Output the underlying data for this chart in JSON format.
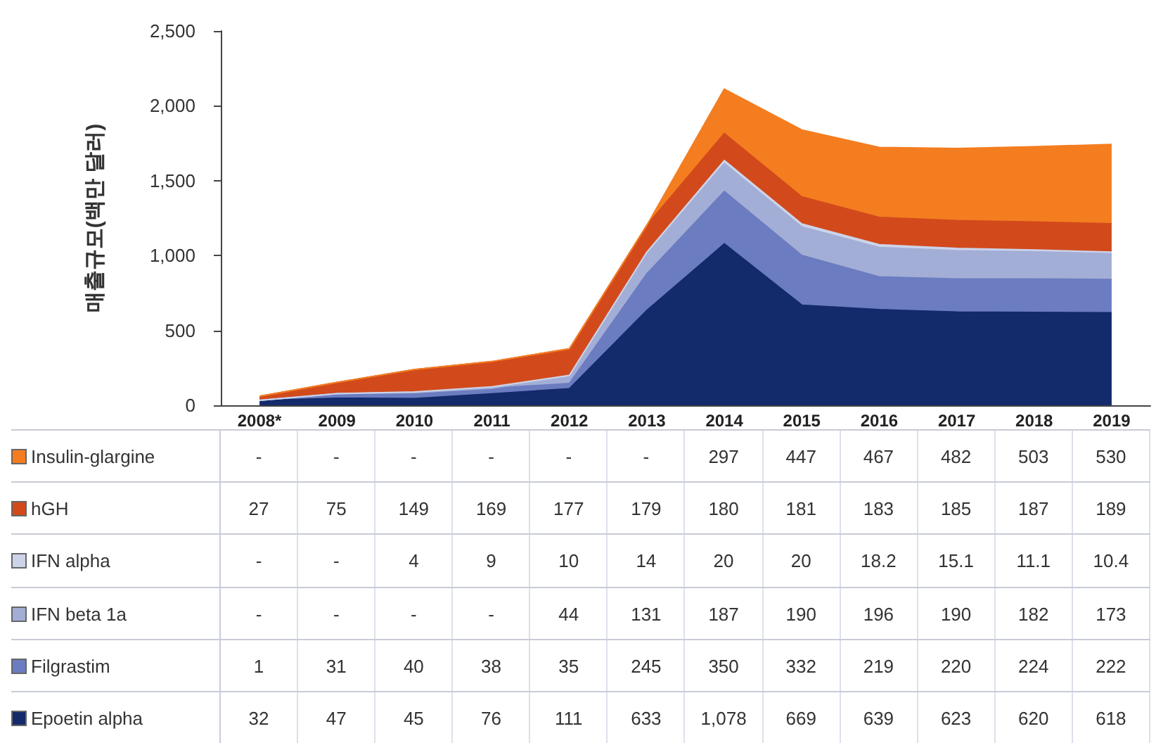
{
  "chart_data": {
    "type": "area",
    "stacked": true,
    "ylabel": "매출규모(백만 달러)",
    "categories": [
      "2008*",
      "2009",
      "2010",
      "2011",
      "2012",
      "2013",
      "2014",
      "2015",
      "2016",
      "2017",
      "2018",
      "2019"
    ],
    "ylim": [
      0,
      2500
    ],
    "yticks": [
      {
        "value": 0,
        "label": "0"
      },
      {
        "value": 500,
        "label": "500"
      },
      {
        "value": 1000,
        "label": "1,000"
      },
      {
        "value": 1500,
        "label": "1,500"
      },
      {
        "value": 2000,
        "label": "2,000"
      },
      {
        "value": 2500,
        "label": "2,500"
      }
    ],
    "grid": false,
    "legend": "bottom",
    "series": [
      {
        "name": "Epoetin alpha",
        "color": "#132a6b",
        "values": [
          32,
          47,
          45,
          76,
          111,
          633,
          1078,
          669,
          639,
          623,
          620,
          618
        ],
        "value_labels": [
          "32",
          "47",
          "45",
          "76",
          "111",
          "633",
          "1,078",
          "669",
          "639",
          "623",
          "620",
          "618"
        ]
      },
      {
        "name": "Filgrastim",
        "color": "#6c7cc0",
        "values": [
          1,
          31,
          40,
          38,
          35,
          245,
          350,
          332,
          219,
          220,
          224,
          222
        ],
        "value_labels": [
          "1",
          "31",
          "40",
          "38",
          "35",
          "245",
          "350",
          "332",
          "219",
          "220",
          "224",
          "222"
        ]
      },
      {
        "name": "IFN beta 1a",
        "color": "#a3aed6",
        "values": [
          0,
          0,
          0,
          0,
          44,
          131,
          187,
          190,
          196,
          190,
          182,
          173
        ],
        "value_labels": [
          "-",
          "-",
          "-",
          "-",
          "44",
          "131",
          "187",
          "190",
          "196",
          "190",
          "182",
          "173"
        ]
      },
      {
        "name": "IFN alpha",
        "color": "#cdd4ea",
        "values": [
          0,
          0,
          4,
          9,
          10,
          14,
          20,
          20,
          18.2,
          15.1,
          11.1,
          10.4
        ],
        "value_labels": [
          "-",
          "-",
          "4",
          "9",
          "10",
          "14",
          "20",
          "20",
          "18.2",
          "15.1",
          "11.1",
          "10.4"
        ]
      },
      {
        "name": "hGH",
        "color": "#d24a1c",
        "values": [
          27,
          75,
          149,
          169,
          177,
          179,
          180,
          181,
          183,
          185,
          187,
          189
        ],
        "value_labels": [
          "27",
          "75",
          "149",
          "169",
          "177",
          "179",
          "180",
          "181",
          "183",
          "185",
          "187",
          "189"
        ]
      },
      {
        "name": "Insulin-glargine",
        "color": "#f47d20",
        "values": [
          0,
          0,
          0,
          0,
          0,
          0,
          297,
          447,
          467,
          482,
          503,
          530
        ],
        "value_labels": [
          "-",
          "-",
          "-",
          "-",
          "-",
          "-",
          "297",
          "447",
          "467",
          "482",
          "503",
          "530"
        ]
      }
    ]
  }
}
